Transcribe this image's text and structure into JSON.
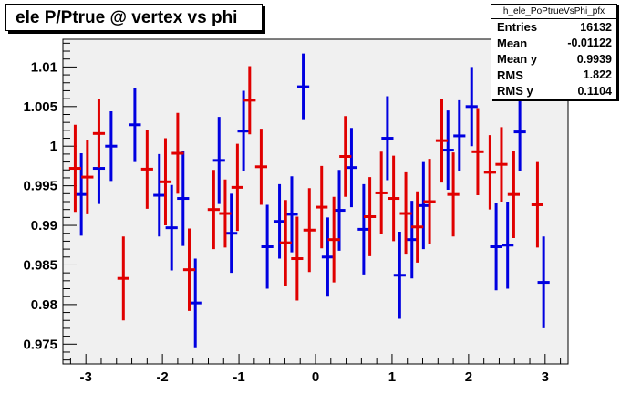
{
  "title": "ele P/Ptrue @ vertex vs phi",
  "stats": {
    "name": "h_ele_PoPtrueVsPhi_pfx",
    "rows": [
      {
        "label": "Entries",
        "value": "16132"
      },
      {
        "label": "Mean",
        "value": "-0.01122"
      },
      {
        "label": "Mean y",
        "value": "0.9939"
      },
      {
        "label": "RMS",
        "value": "1.822"
      },
      {
        "label": "RMS y",
        "value": "0.1104"
      }
    ]
  },
  "colors": {
    "background": "#ffffff",
    "plot_area": "#f0f0f0",
    "series_blue": "#0000e0",
    "series_red": "#e00000"
  },
  "chart_data": {
    "type": "scatter",
    "title": "ele P/Ptrue @ vertex vs phi",
    "xlabel": "",
    "ylabel": "",
    "xlim": [
      -3.3,
      3.3
    ],
    "ylim": [
      0.9725,
      1.0135
    ],
    "x_ticks": [
      "-3",
      "-2",
      "-1",
      "0",
      "1",
      "2",
      "3"
    ],
    "y_ticks": [
      "0.975",
      "0.98",
      "0.985",
      "0.99",
      "0.995",
      "1",
      "1.005",
      "1.01"
    ],
    "grid": false,
    "legend": "none",
    "series": [
      {
        "color": "#0000e0",
        "x_half_width": 0.0785,
        "points": [
          {
            "x": -3.06,
            "y": 0.9939,
            "err": 0.0052
          },
          {
            "x": -2.83,
            "y": 0.9972,
            "err": 0.0045
          },
          {
            "x": -2.67,
            "y": 1.0,
            "err": 0.0044
          },
          {
            "x": -2.36,
            "y": 1.0027,
            "err": 0.0047
          },
          {
            "x": -2.04,
            "y": 0.9938,
            "err": 0.0052
          },
          {
            "x": -1.88,
            "y": 0.9897,
            "err": 0.0054
          },
          {
            "x": -1.73,
            "y": 0.9934,
            "err": 0.006
          },
          {
            "x": -1.57,
            "y": 0.9802,
            "err": 0.0056
          },
          {
            "x": -1.26,
            "y": 0.9982,
            "err": 0.0055
          },
          {
            "x": -1.1,
            "y": 0.989,
            "err": 0.005
          },
          {
            "x": -0.94,
            "y": 1.0019,
            "err": 0.0051
          },
          {
            "x": -0.63,
            "y": 0.9873,
            "err": 0.0053
          },
          {
            "x": -0.47,
            "y": 0.9905,
            "err": 0.0047
          },
          {
            "x": -0.31,
            "y": 0.9914,
            "err": 0.0048
          },
          {
            "x": -0.16,
            "y": 1.0075,
            "err": 0.0042
          },
          {
            "x": 0.16,
            "y": 0.986,
            "err": 0.005
          },
          {
            "x": 0.31,
            "y": 0.9919,
            "err": 0.0051
          },
          {
            "x": 0.47,
            "y": 0.9973,
            "err": 0.005
          },
          {
            "x": 0.63,
            "y": 0.9895,
            "err": 0.0057
          },
          {
            "x": 0.94,
            "y": 1.001,
            "err": 0.0053
          },
          {
            "x": 1.1,
            "y": 0.9837,
            "err": 0.0055
          },
          {
            "x": 1.26,
            "y": 0.9882,
            "err": 0.0049
          },
          {
            "x": 1.41,
            "y": 0.9925,
            "err": 0.0055
          },
          {
            "x": 1.73,
            "y": 0.9995,
            "err": 0.005
          },
          {
            "x": 1.88,
            "y": 1.0013,
            "err": 0.0045
          },
          {
            "x": 2.04,
            "y": 1.005,
            "err": 0.005
          },
          {
            "x": 2.36,
            "y": 0.9873,
            "err": 0.0055
          },
          {
            "x": 2.51,
            "y": 0.9875,
            "err": 0.0055
          },
          {
            "x": 2.67,
            "y": 1.0018,
            "err": 0.005
          },
          {
            "x": 2.98,
            "y": 0.9828,
            "err": 0.0058
          }
        ]
      },
      {
        "color": "#e00000",
        "x_half_width": 0.0785,
        "points": [
          {
            "x": -3.14,
            "y": 0.9972,
            "err": 0.0055
          },
          {
            "x": -2.98,
            "y": 0.9961,
            "err": 0.0047
          },
          {
            "x": -2.83,
            "y": 1.0016,
            "err": 0.0043
          },
          {
            "x": -2.51,
            "y": 0.9833,
            "err": 0.0053
          },
          {
            "x": -2.2,
            "y": 0.9971,
            "err": 0.005
          },
          {
            "x": -1.96,
            "y": 0.9955,
            "err": 0.0055
          },
          {
            "x": -1.8,
            "y": 0.9991,
            "err": 0.0051
          },
          {
            "x": -1.65,
            "y": 0.9844,
            "err": 0.0052
          },
          {
            "x": -1.33,
            "y": 0.992,
            "err": 0.005
          },
          {
            "x": -1.18,
            "y": 0.9915,
            "err": 0.0043
          },
          {
            "x": -1.02,
            "y": 0.9948,
            "err": 0.0055
          },
          {
            "x": -0.86,
            "y": 1.0058,
            "err": 0.0043
          },
          {
            "x": -0.71,
            "y": 0.9974,
            "err": 0.0048
          },
          {
            "x": -0.39,
            "y": 0.9878,
            "err": 0.0054
          },
          {
            "x": -0.24,
            "y": 0.9858,
            "err": 0.0053
          },
          {
            "x": -0.08,
            "y": 0.9894,
            "err": 0.0053
          },
          {
            "x": 0.08,
            "y": 0.9923,
            "err": 0.0052
          },
          {
            "x": 0.24,
            "y": 0.9882,
            "err": 0.0054
          },
          {
            "x": 0.39,
            "y": 0.9987,
            "err": 0.0051
          },
          {
            "x": 0.71,
            "y": 0.9911,
            "err": 0.005
          },
          {
            "x": 0.86,
            "y": 0.9941,
            "err": 0.0052
          },
          {
            "x": 1.02,
            "y": 0.9934,
            "err": 0.0054
          },
          {
            "x": 1.18,
            "y": 0.9915,
            "err": 0.0052
          },
          {
            "x": 1.33,
            "y": 0.9898,
            "err": 0.0045
          },
          {
            "x": 1.49,
            "y": 0.993,
            "err": 0.0054
          },
          {
            "x": 1.65,
            "y": 1.0007,
            "err": 0.0053
          },
          {
            "x": 1.8,
            "y": 0.9939,
            "err": 0.0053
          },
          {
            "x": 2.12,
            "y": 0.9993,
            "err": 0.0055
          },
          {
            "x": 2.28,
            "y": 0.9967,
            "err": 0.0047
          },
          {
            "x": 2.43,
            "y": 0.9977,
            "err": 0.0047
          },
          {
            "x": 2.59,
            "y": 0.9939,
            "err": 0.0055
          },
          {
            "x": 2.9,
            "y": 0.9926,
            "err": 0.0054
          }
        ]
      }
    ]
  }
}
